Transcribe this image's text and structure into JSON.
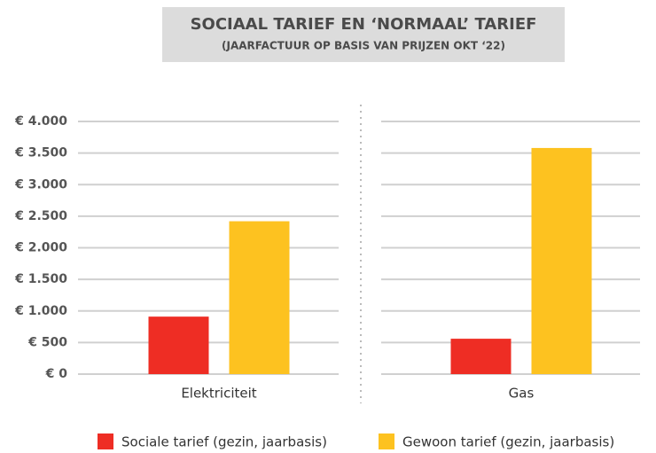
{
  "chart_data": {
    "type": "bar",
    "title": "SOCIAAL TARIEF EN ‘NORMAAL’ TARIEF",
    "subtitle": "(JAARFACTUUR OP BASIS VAN PRIJZEN OKT ‘22)",
    "categories": [
      "Elektriciteit",
      "Gas"
    ],
    "series": [
      {
        "name": "Sociale tarief (gezin, jaarbasis)",
        "color": "#ee2d24",
        "values": [
          910,
          560
        ]
      },
      {
        "name": "Gewoon tarief (gezin, jaarbasis)",
        "color": "#fdc220",
        "values": [
          2420,
          3580
        ]
      }
    ],
    "ylim": [
      0,
      4000
    ],
    "yticks": [
      {
        "value": 0,
        "label": "€ 0"
      },
      {
        "value": 500,
        "label": "€ 500"
      },
      {
        "value": 1000,
        "label": "€ 1.000"
      },
      {
        "value": 1500,
        "label": "€ 1.500"
      },
      {
        "value": 2000,
        "label": "€ 2.000"
      },
      {
        "value": 2500,
        "label": "€ 2.500"
      },
      {
        "value": 3000,
        "label": "€ 3.000"
      },
      {
        "value": 3500,
        "label": "€ 3.500"
      },
      {
        "value": 4000,
        "label": "€ 4.000"
      }
    ],
    "grid": true,
    "legend": "bottom"
  }
}
